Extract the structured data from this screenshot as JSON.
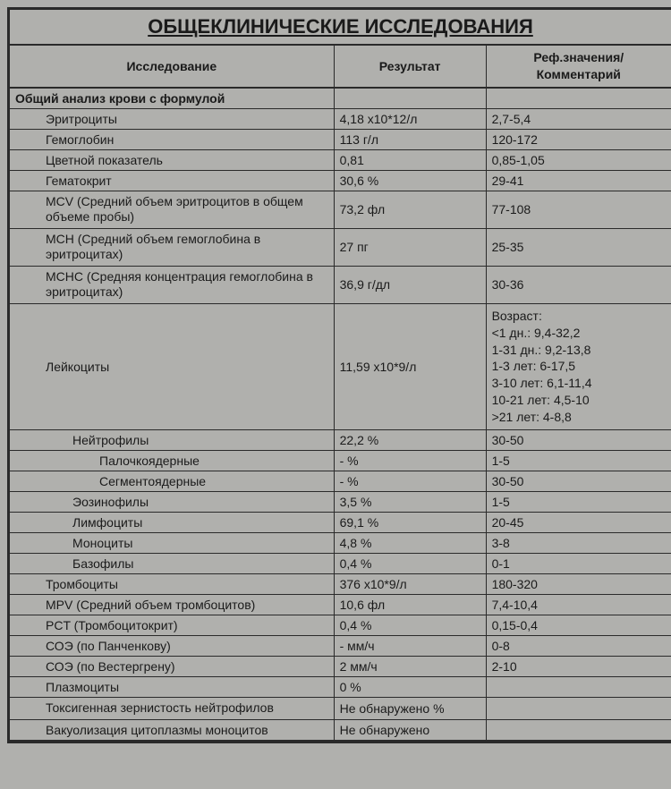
{
  "title": "ОБЩЕКЛИНИЧЕСКИЕ ИССЛЕДОВАНИЯ",
  "columns": {
    "test": "Исследование",
    "result": "Результат",
    "ref": "Реф.значения/\nКомментарий"
  },
  "section": "Общий анализ крови с формулой",
  "rows": [
    {
      "indent": 1,
      "name": "Эритроциты",
      "result": "4,18 x10*12/л",
      "ref": "2,7-5,4"
    },
    {
      "indent": 1,
      "name": "Гемоглобин",
      "result": "113 г/л",
      "ref": "120-172"
    },
    {
      "indent": 1,
      "name": "Цветной показатель",
      "result": "0,81",
      "ref": "0,85-1,05"
    },
    {
      "indent": 1,
      "name": "Гематокрит",
      "result": "30,6 %",
      "ref": "29-41"
    },
    {
      "indent": 1,
      "name": "MCV (Средний объем эритроцитов в общем объеме пробы)",
      "result": "73,2 фл",
      "ref": "77-108",
      "wrap": true
    },
    {
      "indent": 1,
      "name": "MCH (Средний объем гемоглобина в эритроцитах)",
      "result": "27 пг",
      "ref": "25-35",
      "wrap": true
    },
    {
      "indent": 1,
      "name": "MCHC (Средняя концентрация гемоглобина в эритроцитах)",
      "result": "36,9 г/дл",
      "ref": "30-36",
      "wrap": true
    },
    {
      "indent": 1,
      "name": "Лейкоциты",
      "result": "11,59 x10*9/л",
      "ref": "Возраст:\n<1 дн.: 9,4-32,2\n1-31 дн.: 9,2-13,8\n1-3 лет: 6-17,5\n3-10 лет: 6,1-11,4\n10-21 лет: 4,5-10\n>21 лет: 4-8,8",
      "refMulti": true
    },
    {
      "indent": 2,
      "name": "Нейтрофилы",
      "result": "22,2 %",
      "ref": "30-50"
    },
    {
      "indent": 3,
      "name": "Палочкоядерные",
      "result": "- %",
      "ref": "1-5"
    },
    {
      "indent": 3,
      "name": "Сегментоядерные",
      "result": "- %",
      "ref": "30-50"
    },
    {
      "indent": 2,
      "name": "Эозинофилы",
      "result": "3,5 %",
      "ref": "1-5"
    },
    {
      "indent": 2,
      "name": "Лимфоциты",
      "result": "69,1 %",
      "ref": "20-45"
    },
    {
      "indent": 2,
      "name": "Моноциты",
      "result": "4,8 %",
      "ref": "3-8"
    },
    {
      "indent": 2,
      "name": "Базофилы",
      "result": "0,4 %",
      "ref": "0-1"
    },
    {
      "indent": 1,
      "name": "Тромбоциты",
      "result": "376 x10*9/л",
      "ref": "180-320"
    },
    {
      "indent": 1,
      "name": "MPV (Средний объем тромбоцитов)",
      "result": "10,6 фл",
      "ref": "7,4-10,4"
    },
    {
      "indent": 1,
      "name": "PCT (Тромбоцитокрит)",
      "result": "0,4 %",
      "ref": "0,15-0,4"
    },
    {
      "indent": 1,
      "name": "СОЭ (по Панченкову)",
      "result": "- мм/ч",
      "ref": "0-8"
    },
    {
      "indent": 1,
      "name": "СОЭ (по Вестергрену)",
      "result": "2 мм/ч",
      "ref": "2-10"
    },
    {
      "indent": 1,
      "name": "Плазмоциты",
      "result": "0 %",
      "ref": ""
    },
    {
      "indent": 1,
      "name": "Токсигенная зернистость нейтрофилов",
      "result": "Не обнаружено %",
      "ref": "",
      "wrap": true
    },
    {
      "indent": 1,
      "name": "Вакуолизация цитоплазмы моноцитов",
      "result": "Не обнаружено",
      "ref": ""
    }
  ],
  "styling": {
    "background_color": "#b0b0ad",
    "border_color": "#2a2a2a",
    "text_color": "#1a1a1a",
    "title_fontsize": 22,
    "header_fontsize": 14,
    "cell_fontsize": 14,
    "font_family": "Arial",
    "col_widths_pct": [
      49,
      23,
      28
    ]
  }
}
